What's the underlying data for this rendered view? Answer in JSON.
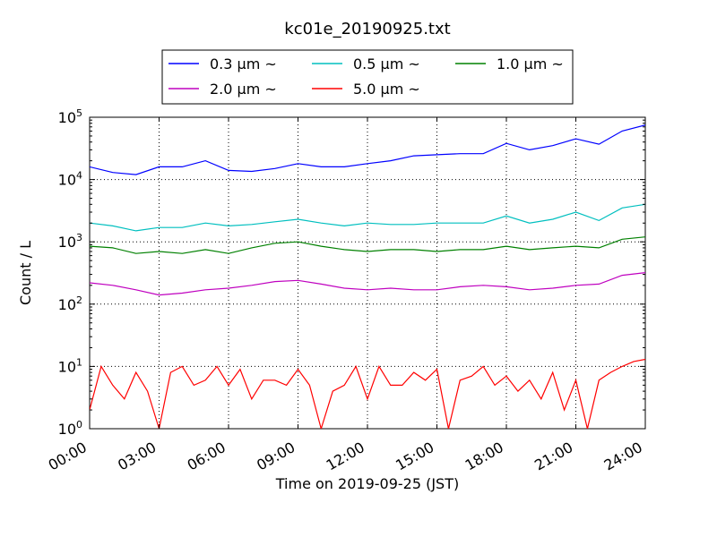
{
  "chart_data": {
    "type": "line",
    "title": "kc01e_20190925.txt",
    "xlabel": "Time on 2019-09-25 (JST)",
    "ylabel": "Count / L",
    "yscale": "log",
    "xlim_hours": [
      0,
      24
    ],
    "ylim": [
      1,
      100000
    ],
    "grid": "on",
    "legend_placement": "top",
    "x_ticks": [
      {
        "hour": 0,
        "label": "00:00"
      },
      {
        "hour": 3,
        "label": "03:00"
      },
      {
        "hour": 6,
        "label": "06:00"
      },
      {
        "hour": 9,
        "label": "09:00"
      },
      {
        "hour": 12,
        "label": "12:00"
      },
      {
        "hour": 15,
        "label": "15:00"
      },
      {
        "hour": 18,
        "label": "18:00"
      },
      {
        "hour": 21,
        "label": "21:00"
      },
      {
        "hour": 24,
        "label": "24:00"
      }
    ],
    "y_ticks": [
      {
        "value": 1,
        "base": "10",
        "exp": "0"
      },
      {
        "value": 10,
        "base": "10",
        "exp": "1"
      },
      {
        "value": 100,
        "base": "10",
        "exp": "2"
      },
      {
        "value": 1000,
        "base": "10",
        "exp": "3"
      },
      {
        "value": 10000,
        "base": "10",
        "exp": "4"
      },
      {
        "value": 100000,
        "base": "10",
        "exp": "5"
      }
    ],
    "series": [
      {
        "name": "0.3 μm ~",
        "color": "#0000ff",
        "x": [
          0,
          1,
          2,
          3,
          4,
          5,
          6,
          7,
          8,
          9,
          10,
          11,
          12,
          13,
          14,
          15,
          16,
          17,
          18,
          19,
          20,
          21,
          22,
          23,
          24
        ],
        "y": [
          16000,
          13000,
          12000,
          16000,
          16000,
          20000,
          14000,
          13500,
          15000,
          18000,
          16000,
          16000,
          18000,
          20000,
          24000,
          25000,
          26000,
          26000,
          38000,
          30000,
          35000,
          45000,
          37000,
          60000,
          75000
        ]
      },
      {
        "name": "0.5 μm ~",
        "color": "#00bfbf",
        "x": [
          0,
          1,
          2,
          3,
          4,
          5,
          6,
          7,
          8,
          9,
          10,
          11,
          12,
          13,
          14,
          15,
          16,
          17,
          18,
          19,
          20,
          21,
          22,
          23,
          24
        ],
        "y": [
          2000,
          1800,
          1500,
          1700,
          1700,
          2000,
          1800,
          1900,
          2100,
          2300,
          2000,
          1800,
          2000,
          1900,
          1900,
          2000,
          2000,
          2000,
          2600,
          2000,
          2300,
          3000,
          2200,
          3500,
          4000
        ]
      },
      {
        "name": "1.0 μm ~",
        "color": "#008000",
        "x": [
          0,
          1,
          2,
          3,
          4,
          5,
          6,
          7,
          8,
          9,
          10,
          11,
          12,
          13,
          14,
          15,
          16,
          17,
          18,
          19,
          20,
          21,
          22,
          23,
          24
        ],
        "y": [
          850,
          800,
          650,
          700,
          650,
          750,
          650,
          800,
          950,
          1000,
          850,
          750,
          700,
          750,
          750,
          700,
          750,
          750,
          850,
          750,
          800,
          850,
          800,
          1100,
          1200
        ]
      },
      {
        "name": "2.0 μm ~",
        "color": "#bf00bf",
        "x": [
          0,
          1,
          2,
          3,
          4,
          5,
          6,
          7,
          8,
          9,
          10,
          11,
          12,
          13,
          14,
          15,
          16,
          17,
          18,
          19,
          20,
          21,
          22,
          23,
          24
        ],
        "y": [
          220,
          200,
          170,
          140,
          150,
          170,
          180,
          200,
          230,
          240,
          210,
          180,
          170,
          180,
          170,
          170,
          190,
          200,
          190,
          170,
          180,
          200,
          210,
          290,
          320
        ]
      },
      {
        "name": "5.0 μm ~",
        "color": "#ff0000",
        "x": [
          0,
          0.5,
          1,
          1.5,
          2,
          2.5,
          3,
          3.5,
          4,
          4.5,
          5,
          5.5,
          6,
          6.5,
          7,
          7.5,
          8,
          8.5,
          9,
          9.5,
          10,
          10.5,
          11,
          11.5,
          12,
          12.5,
          13,
          13.5,
          14,
          14.5,
          15,
          15.5,
          16,
          16.5,
          17,
          17.5,
          18,
          18.5,
          19,
          19.5,
          20,
          20.5,
          21,
          21.5,
          22,
          22.5,
          23,
          23.5,
          24
        ],
        "y": [
          2,
          10,
          5,
          3,
          8,
          4,
          1,
          8,
          10,
          5,
          6,
          10,
          5,
          9,
          3,
          6,
          6,
          5,
          9,
          5,
          1,
          4,
          5,
          10,
          3,
          10,
          5,
          5,
          8,
          6,
          9,
          1,
          6,
          7,
          10,
          5,
          7,
          4,
          6,
          3,
          8,
          2,
          6,
          1,
          6,
          8,
          10,
          12,
          13
        ]
      }
    ]
  }
}
